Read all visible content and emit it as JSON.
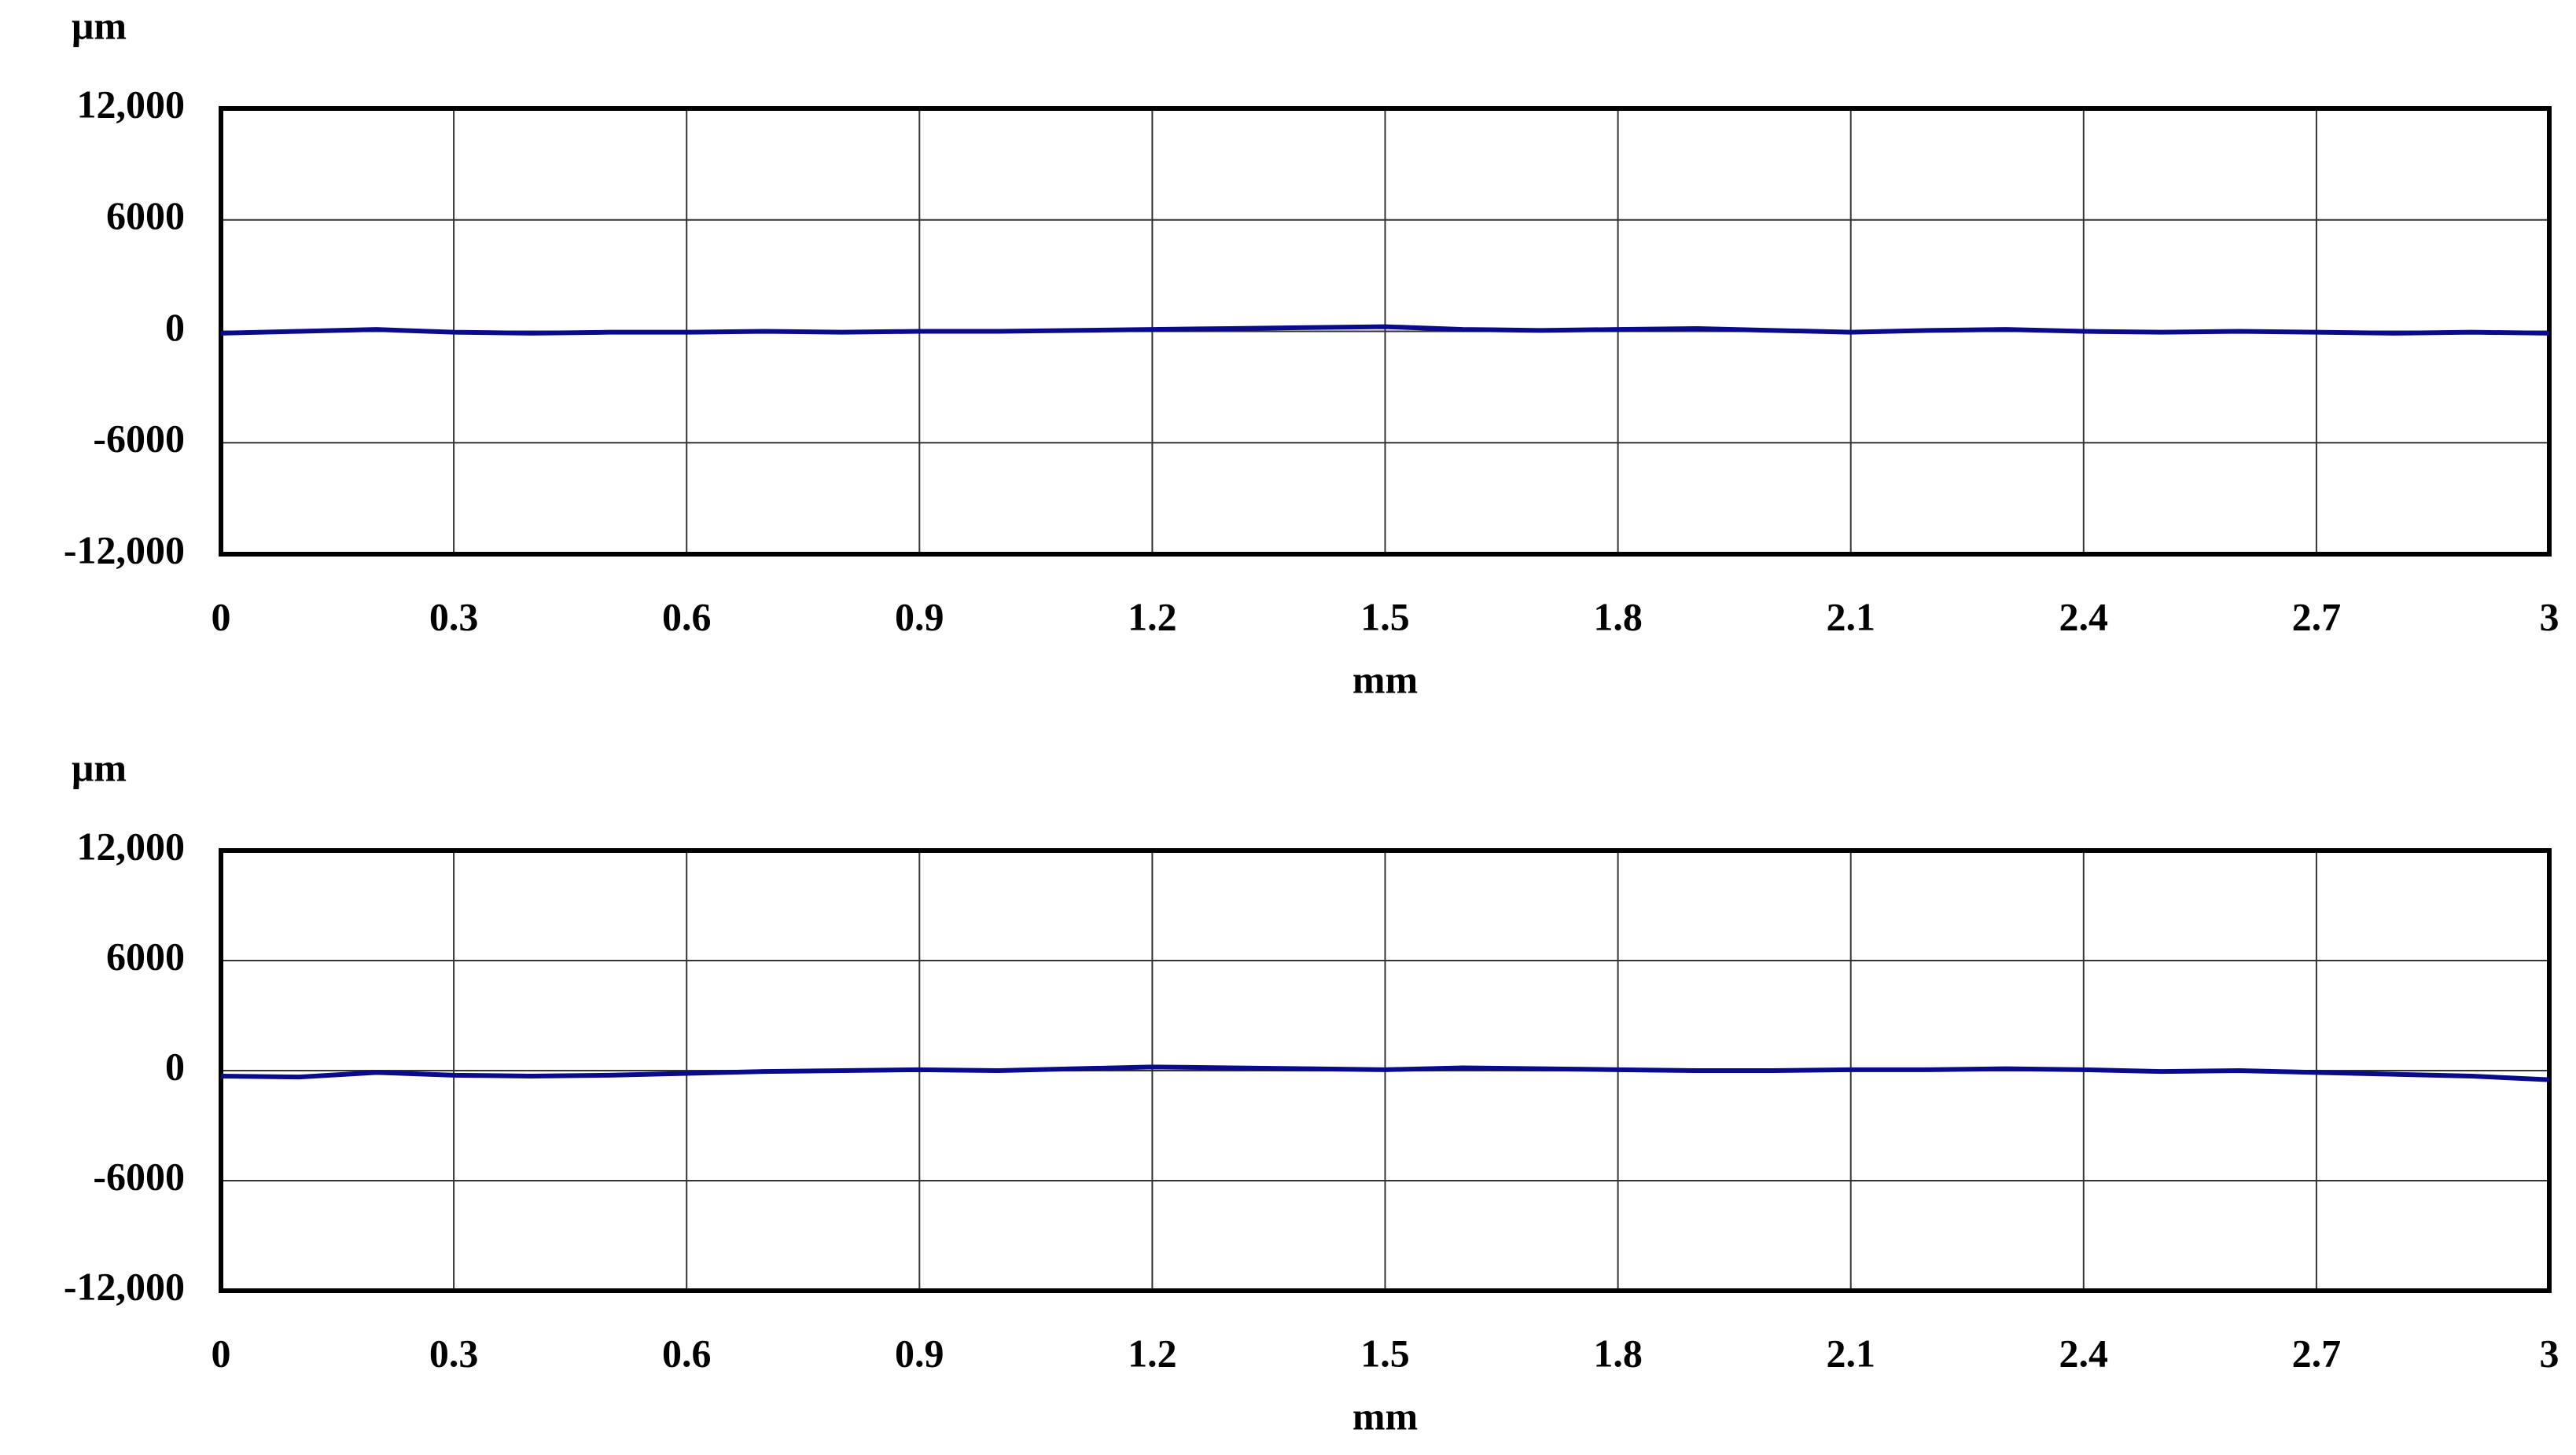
{
  "chart_data": [
    {
      "type": "line",
      "y_label": "μm",
      "x_label": "mm",
      "x": [
        0,
        0.1,
        0.2,
        0.3,
        0.4,
        0.5,
        0.6,
        0.7,
        0.8,
        0.9,
        1.0,
        1.1,
        1.2,
        1.3,
        1.4,
        1.5,
        1.6,
        1.7,
        1.8,
        1.9,
        2.0,
        2.1,
        2.2,
        2.3,
        2.4,
        2.5,
        2.6,
        2.7,
        2.8,
        2.9,
        3.0
      ],
      "series": [
        {
          "color": "#0a0a8c",
          "values": [
            -100,
            0,
            100,
            -50,
            -100,
            -50,
            -50,
            0,
            -50,
            0,
            0,
            50,
            100,
            150,
            200,
            250,
            100,
            50,
            100,
            150,
            50,
            -50,
            50,
            100,
            0,
            -50,
            0,
            -50,
            -100,
            -50,
            -100
          ]
        }
      ],
      "xlim": [
        0,
        3
      ],
      "xticks": [
        0,
        0.3,
        0.6,
        0.9,
        1.2,
        1.5,
        1.8,
        2.1,
        2.4,
        2.7,
        3
      ],
      "ylim": [
        -12000,
        12000
      ],
      "yticks": [
        {
          "value": 12000,
          "label": "12,000"
        },
        6000,
        0,
        -6000,
        {
          "value": -12000,
          "label": "-12,000"
        }
      ],
      "grid": true
    },
    {
      "type": "line",
      "y_label": "μm",
      "x_label": "mm",
      "x": [
        0,
        0.1,
        0.2,
        0.3,
        0.4,
        0.5,
        0.6,
        0.7,
        0.8,
        0.9,
        1.0,
        1.1,
        1.2,
        1.3,
        1.4,
        1.5,
        1.6,
        1.7,
        1.8,
        1.9,
        2.0,
        2.1,
        2.2,
        2.3,
        2.4,
        2.5,
        2.6,
        2.7,
        2.8,
        2.9,
        3.0
      ],
      "series": [
        {
          "color": "#0a0a8c",
          "values": [
            -300,
            -350,
            -100,
            -250,
            -300,
            -250,
            -150,
            -50,
            0,
            50,
            0,
            100,
            200,
            150,
            100,
            50,
            150,
            100,
            50,
            0,
            0,
            50,
            50,
            100,
            50,
            -50,
            0,
            -100,
            -200,
            -300,
            -500
          ]
        }
      ],
      "xlim": [
        0,
        3
      ],
      "xticks": [
        0,
        0.3,
        0.6,
        0.9,
        1.2,
        1.5,
        1.8,
        2.1,
        2.4,
        2.7,
        3
      ],
      "ylim": [
        -12000,
        12000
      ],
      "yticks": [
        {
          "value": 12000,
          "label": "12,000"
        },
        6000,
        0,
        -6000,
        {
          "value": -12000,
          "label": "-12,000"
        }
      ],
      "grid": true
    }
  ]
}
